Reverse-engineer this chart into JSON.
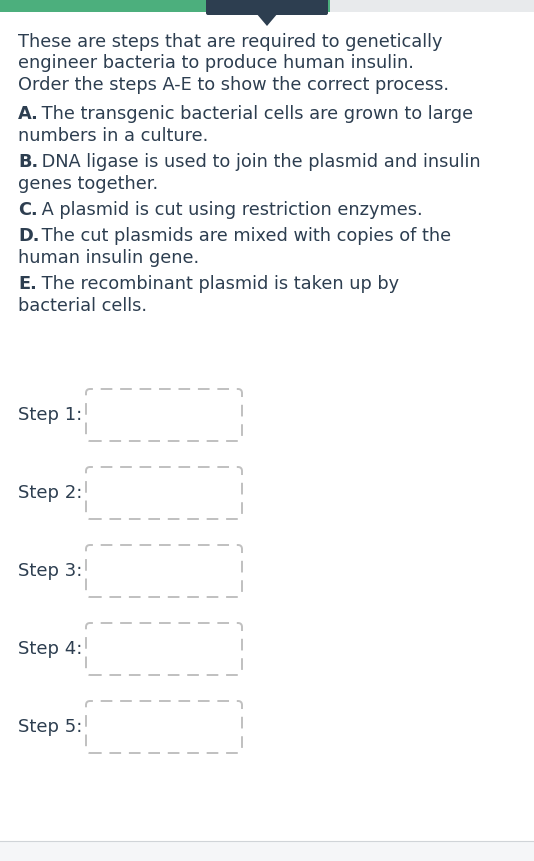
{
  "bg_color": "#f5f6f8",
  "card_color": "#ffffff",
  "header_green": "#4caf7d",
  "header_navy": "#2d3e50",
  "text_color": "#2d3e50",
  "box_color": "#c0c0c0",
  "title_lines": [
    "These are steps that are required to genetically",
    "engineer bacteria to produce human insulin.",
    "Order the steps A-E to show the correct process."
  ],
  "steps_intro": [
    {
      "label": "A.",
      "line1": " The transgenic bacterial cells are grown to large",
      "line2": "numbers in a culture."
    },
    {
      "label": "B.",
      "line1": " DNA ligase is used to join the plasmid and insulin",
      "line2": "genes together."
    },
    {
      "label": "C.",
      "line1": " A plasmid is cut using restriction enzymes.",
      "line2": null
    },
    {
      "label": "D.",
      "line1": " The cut plasmids are mixed with copies of the",
      "line2": "human insulin gene."
    },
    {
      "label": "E.",
      "line1": " The recombinant plasmid is taken up by",
      "line2": "bacterial cells."
    }
  ],
  "step_labels": [
    "Step 1:",
    "Step 2:",
    "Step 3:",
    "Step 4:",
    "Step 5:"
  ],
  "figsize": [
    5.34,
    8.61
  ],
  "dpi": 100
}
